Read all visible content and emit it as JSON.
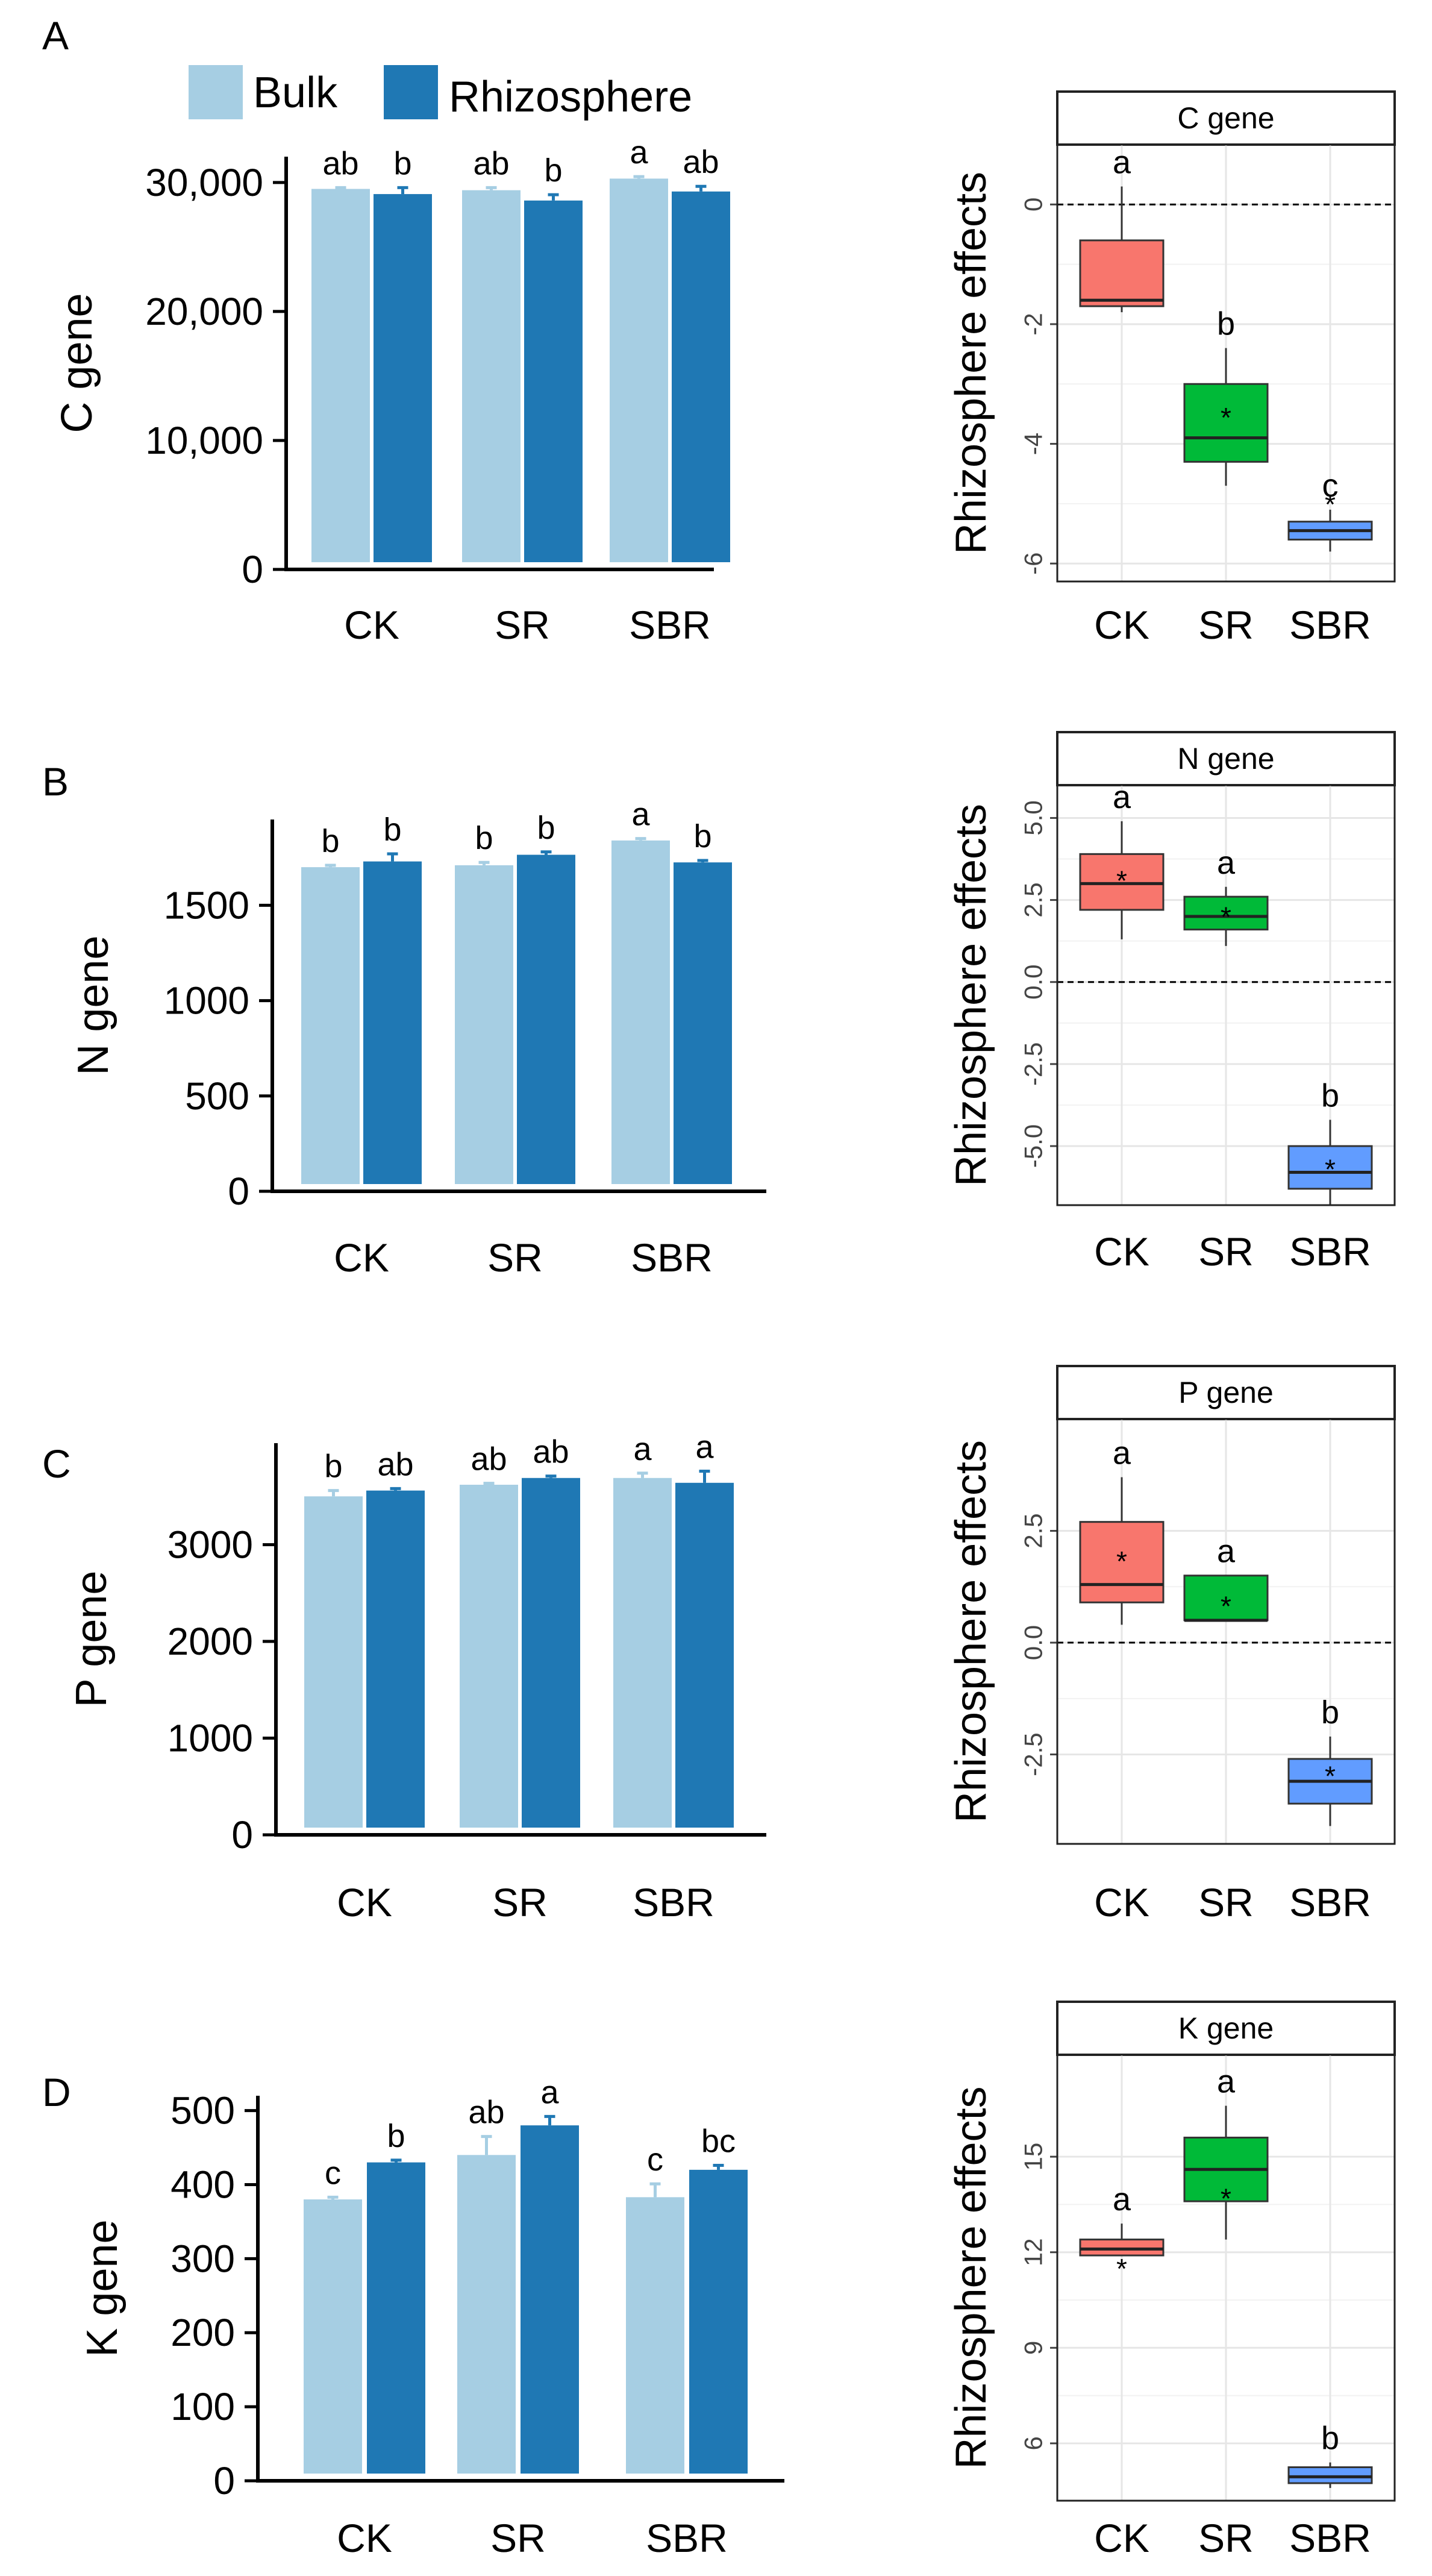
{
  "legend": {
    "bulk_label": "Bulk",
    "rhizo_label": "Rhizosphere"
  },
  "colors": {
    "bulk": "#a6cee3",
    "rhizo": "#1f78b4",
    "CK": "#f8766d",
    "SR": "#00ba38",
    "SBR": "#619cff"
  },
  "chart_data": [
    {
      "type": "bar",
      "panel": "A",
      "title": "",
      "xlabel": "",
      "ylabel": "C gene",
      "categories": [
        "CK",
        "SR",
        "SBR"
      ],
      "yticks": [
        "0",
        "10,000",
        "20,000",
        "30,000"
      ],
      "ytick_values": [
        0,
        10000,
        20000,
        30000
      ],
      "ylim": [
        0,
        32000
      ],
      "series": [
        {
          "name": "Bulk",
          "values": [
            29500,
            29400,
            30300
          ],
          "errors": [
            100,
            200,
            150
          ],
          "letters": [
            "ab",
            "ab",
            "a"
          ]
        },
        {
          "name": "Rhizosphere",
          "values": [
            29100,
            28600,
            29300
          ],
          "errors": [
            500,
            450,
            400
          ],
          "letters": [
            "b",
            "b",
            "ab"
          ]
        }
      ]
    },
    {
      "type": "box",
      "panel": "A",
      "title": "C gene",
      "ylabel": "Rhizosphere effects",
      "categories": [
        "CK",
        "SR",
        "SBR"
      ],
      "yticks": [
        "-6",
        "-4",
        "-2",
        "0"
      ],
      "ytick_values": [
        -6,
        -4,
        -2,
        0
      ],
      "ylim": [
        -6.3,
        1.0
      ],
      "refline": 0,
      "boxes": [
        {
          "min": -1.8,
          "q1": -1.7,
          "median": -1.6,
          "q3": -0.6,
          "max": 0.3,
          "mean": null,
          "letter": "a"
        },
        {
          "min": -4.7,
          "q1": -4.3,
          "median": -3.9,
          "q3": -3.0,
          "max": -2.4,
          "mean": -3.5,
          "letter": "b"
        },
        {
          "min": -5.8,
          "q1": -5.6,
          "median": -5.45,
          "q3": -5.3,
          "max": -5.1,
          "mean": -4.95,
          "letter": "c"
        }
      ]
    },
    {
      "type": "bar",
      "panel": "B",
      "title": "",
      "xlabel": "",
      "ylabel": "N gene",
      "categories": [
        "CK",
        "SR",
        "SBR"
      ],
      "yticks": [
        "0",
        "500",
        "1000",
        "1500"
      ],
      "ytick_values": [
        0,
        500,
        1000,
        1500
      ],
      "ylim": [
        0,
        1950
      ],
      "series": [
        {
          "name": "Bulk",
          "values": [
            1700,
            1710,
            1840
          ],
          "errors": [
            10,
            15,
            10
          ],
          "letters": [
            "b",
            "b",
            "a"
          ]
        },
        {
          "name": "Rhizosphere",
          "values": [
            1730,
            1765,
            1725
          ],
          "errors": [
            40,
            15,
            10
          ],
          "letters": [
            "b",
            "b",
            "b"
          ]
        }
      ]
    },
    {
      "type": "box",
      "panel": "B",
      "title": "N gene",
      "ylabel": "Rhizosphere effects",
      "categories": [
        "CK",
        "SR",
        "SBR"
      ],
      "yticks": [
        "-5.0",
        "-2.5",
        "0.0",
        "2.5",
        "5.0"
      ],
      "ytick_values": [
        -5,
        -2.5,
        0,
        2.5,
        5
      ],
      "ylim": [
        -6.8,
        6.0
      ],
      "refline": 0,
      "boxes": [
        {
          "min": 1.3,
          "q1": 2.2,
          "median": 3.0,
          "q3": 3.9,
          "max": 4.9,
          "mean": 3.2,
          "letter": "a"
        },
        {
          "min": 1.1,
          "q1": 1.6,
          "median": 2.0,
          "q3": 2.6,
          "max": 2.9,
          "mean": 2.1,
          "letter": "a"
        },
        {
          "min": -6.8,
          "q1": -6.3,
          "median": -5.8,
          "q3": -5.0,
          "max": -4.2,
          "mean": -5.6,
          "letter": "b"
        }
      ]
    },
    {
      "type": "bar",
      "panel": "C",
      "title": "",
      "xlabel": "",
      "ylabel": "P gene",
      "categories": [
        "CK",
        "SR",
        "SBR"
      ],
      "yticks": [
        "0",
        "1000",
        "2000",
        "3000"
      ],
      "ytick_values": [
        0,
        1000,
        2000,
        3000
      ],
      "ylim": [
        0,
        4050
      ],
      "series": [
        {
          "name": "Bulk",
          "values": [
            3500,
            3620,
            3690
          ],
          "errors": [
            60,
            15,
            50
          ],
          "letters": [
            "b",
            "ab",
            "a"
          ]
        },
        {
          "name": "Rhizosphere",
          "values": [
            3560,
            3690,
            3640
          ],
          "errors": [
            20,
            20,
            120
          ],
          "letters": [
            "ab",
            "ab",
            "a"
          ]
        }
      ]
    },
    {
      "type": "box",
      "panel": "C",
      "title": "P gene",
      "ylabel": "Rhizosphere effects",
      "categories": [
        "CK",
        "SR",
        "SBR"
      ],
      "yticks": [
        "-2.5",
        "0.0",
        "2.5"
      ],
      "ytick_values": [
        -2.5,
        0,
        2.5
      ],
      "ylim": [
        -4.5,
        5.0
      ],
      "refline": 0,
      "boxes": [
        {
          "min": 0.4,
          "q1": 0.9,
          "median": 1.3,
          "q3": 2.7,
          "max": 3.7,
          "mean": 1.9,
          "letter": "a"
        },
        {
          "min": 0.5,
          "q1": 0.5,
          "median": 0.5,
          "q3": 1.5,
          "max": 1.5,
          "mean": 0.9,
          "letter": "a"
        },
        {
          "min": -4.1,
          "q1": -3.6,
          "median": -3.1,
          "q3": -2.6,
          "max": -2.1,
          "mean": -2.9,
          "letter": "b"
        }
      ]
    },
    {
      "type": "bar",
      "panel": "D",
      "title": "",
      "xlabel": "",
      "ylabel": "K gene",
      "categories": [
        "CK",
        "SR",
        "SBR"
      ],
      "yticks": [
        "0",
        "100",
        "200",
        "300",
        "400",
        "500"
      ],
      "ytick_values": [
        0,
        100,
        200,
        300,
        400,
        500
      ],
      "ylim": [
        0,
        520
      ],
      "series": [
        {
          "name": "Bulk",
          "values": [
            380,
            440,
            383
          ],
          "errors": [
            3,
            25,
            18
          ],
          "letters": [
            "c",
            "ab",
            "c"
          ]
        },
        {
          "name": "Rhizosphere",
          "values": [
            430,
            480,
            420
          ],
          "errors": [
            3,
            12,
            6
          ],
          "letters": [
            "b",
            "a",
            "bc"
          ]
        }
      ]
    },
    {
      "type": "box",
      "panel": "D",
      "title": "K gene",
      "ylabel": "Rhizosphere effects",
      "categories": [
        "CK",
        "SR",
        "SBR"
      ],
      "yticks": [
        "6",
        "9",
        "12",
        "15"
      ],
      "ytick_values": [
        6,
        9,
        12,
        15
      ],
      "ylim": [
        4.2,
        18.2
      ],
      "refline": null,
      "boxes": [
        {
          "min": 11.9,
          "q1": 11.9,
          "median": 12.1,
          "q3": 12.4,
          "max": 12.9,
          "mean": 11.6,
          "letter": "a"
        },
        {
          "min": 12.4,
          "q1": 13.6,
          "median": 14.6,
          "q3": 15.6,
          "max": 16.6,
          "mean": 13.8,
          "letter": "a"
        },
        {
          "min": 4.6,
          "q1": 4.75,
          "median": 4.95,
          "q3": 5.25,
          "max": 5.4,
          "mean": null,
          "letter": "b"
        }
      ]
    }
  ]
}
